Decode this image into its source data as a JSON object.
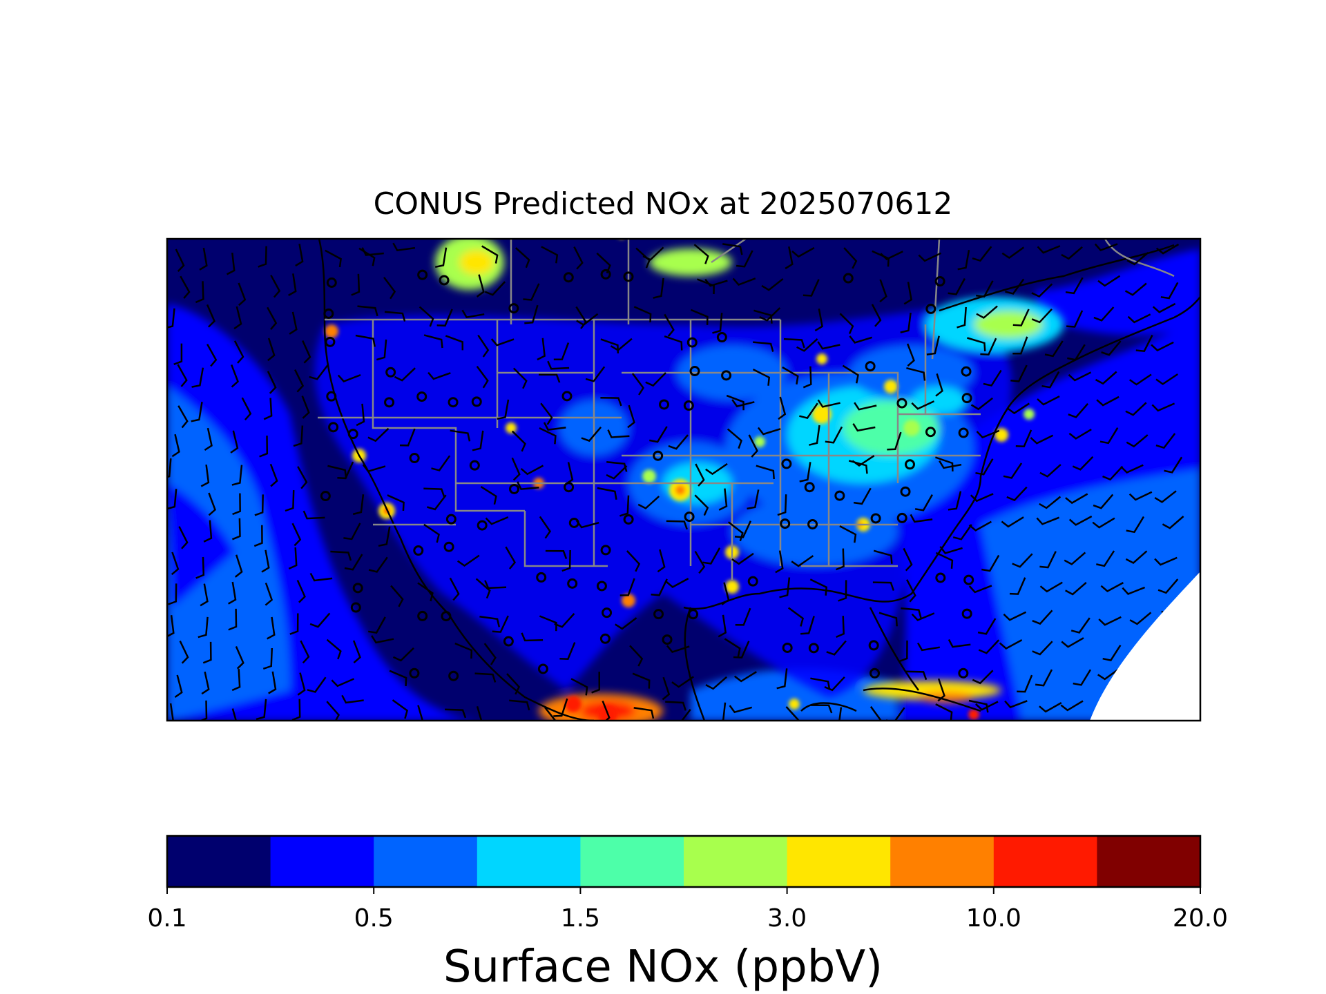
{
  "title": "CONUS Predicted NOx at 2025070612",
  "colorbar": {
    "label": "Surface NOx (ppbV)",
    "tick_labels": [
      "0.1",
      "0.5",
      "1.5",
      "3.0",
      "10.0",
      "20.0"
    ],
    "colors": [
      "#00006e",
      "#0000ff",
      "#0064ff",
      "#00d6ff",
      "#4dffa9",
      "#a8ff4d",
      "#ffe600",
      "#ff8000",
      "#ff1a00",
      "#800000"
    ]
  },
  "map": {
    "variable": "Surface NOx",
    "units": "ppbV",
    "region": "CONUS",
    "overlays": [
      "state-boundaries",
      "coastlines",
      "wind-barbs",
      "calm-wind-circles"
    ],
    "background_color": "#00006e"
  }
}
